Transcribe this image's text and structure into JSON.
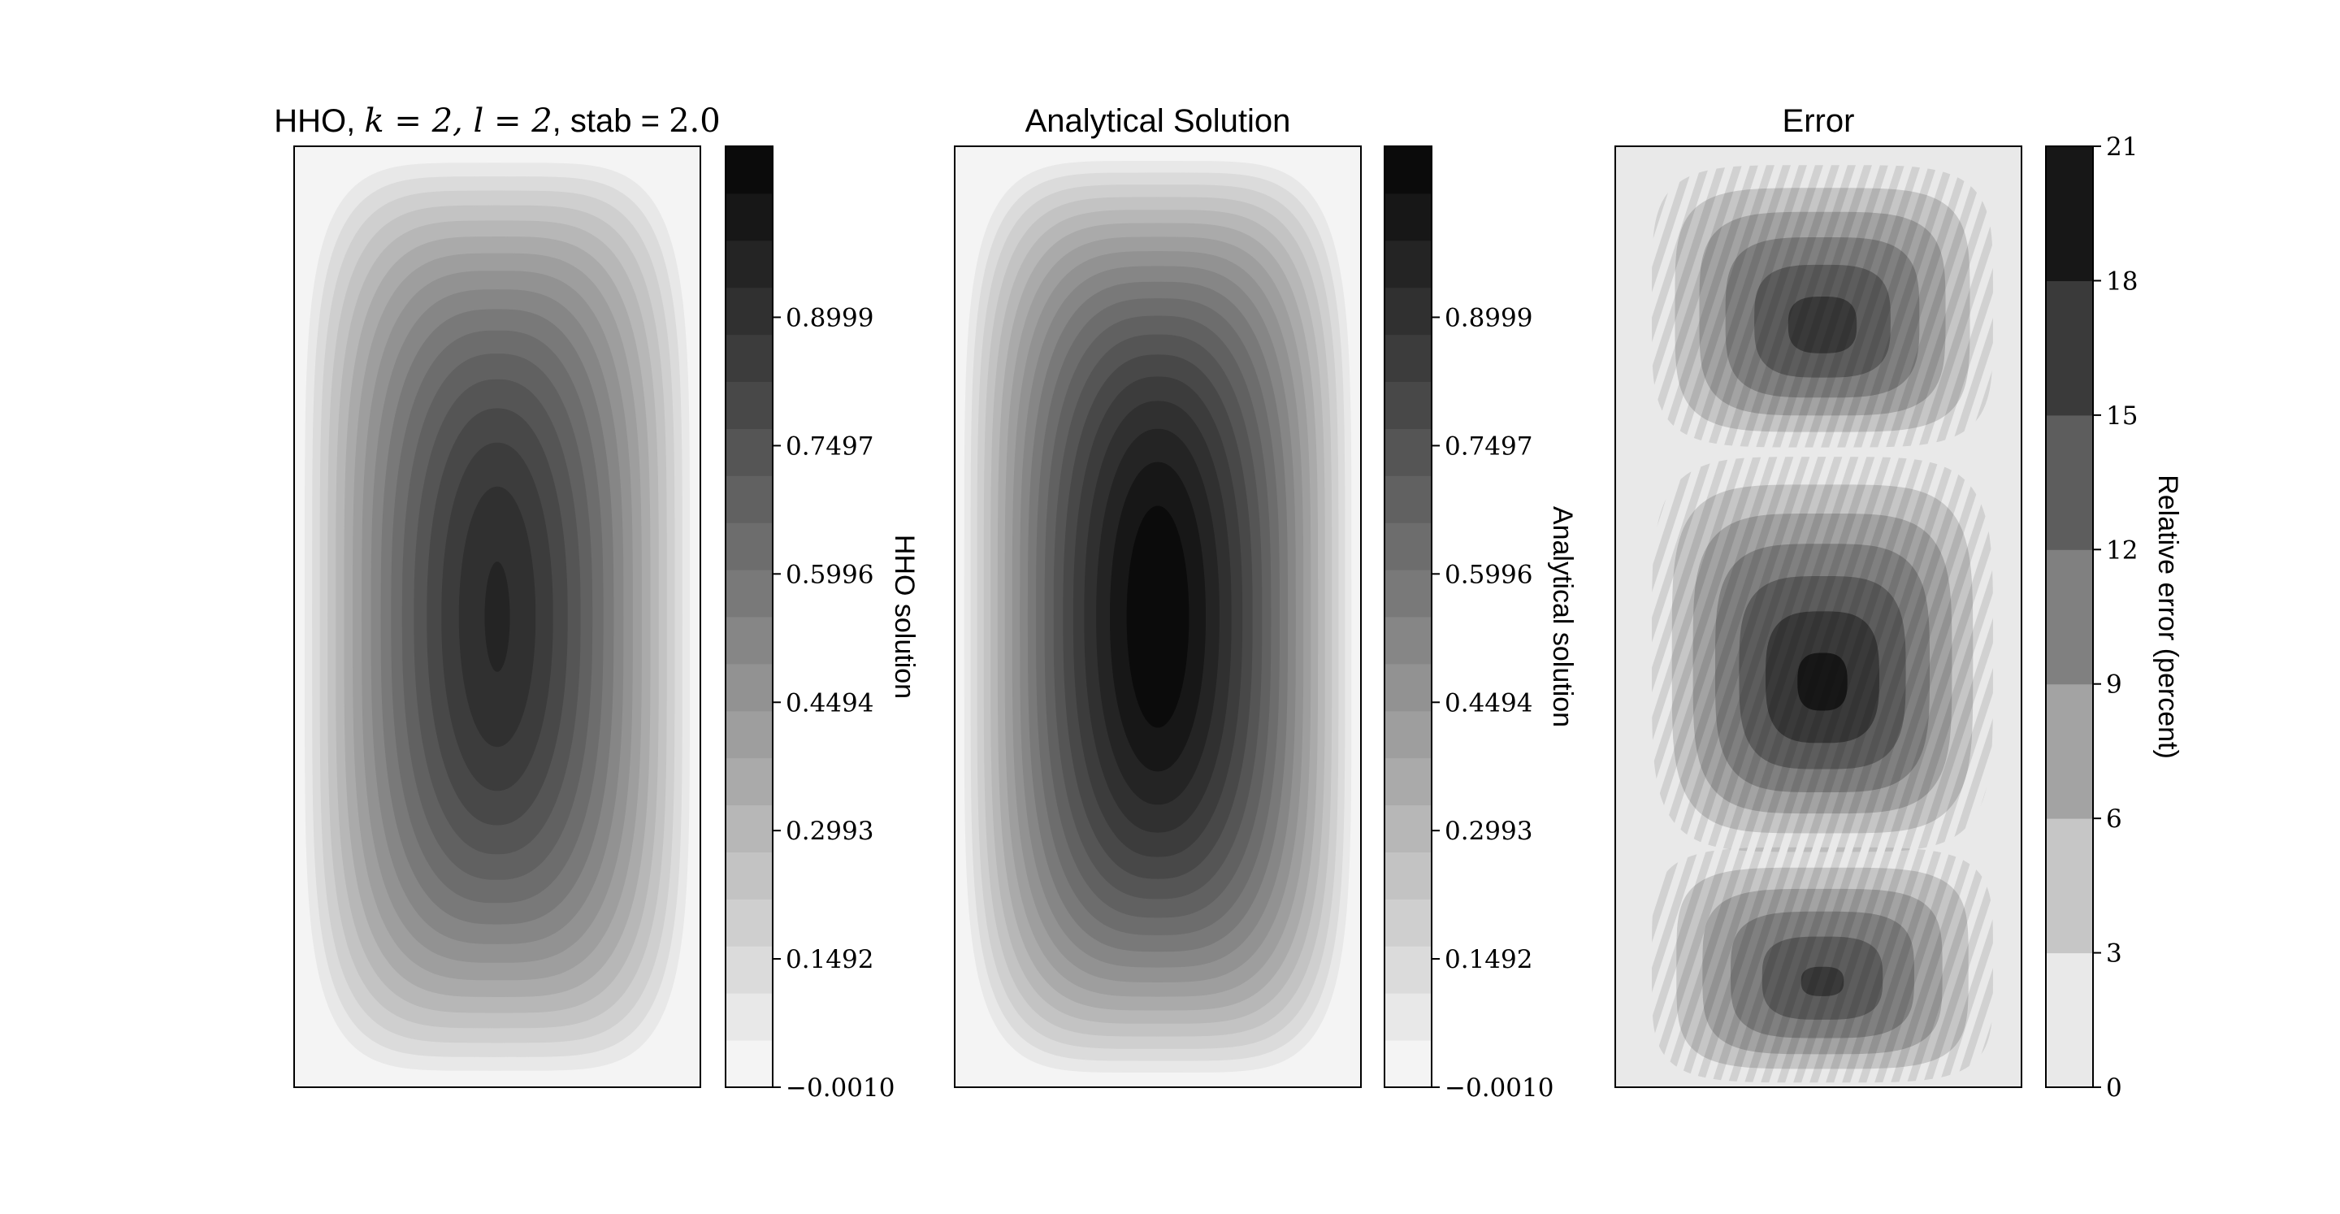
{
  "chart_data": [
    {
      "type": "heatmap",
      "title": "HHO, k = 2, l = 2, stab = 2.0",
      "title_parts": {
        "prefix": "HHO, ",
        "k": "k = 2, l = 2",
        "stab_word": ", stab = ",
        "stab": "2.0"
      },
      "colorbar": {
        "label": "HHO solution",
        "ticks": [
          "−0.0010",
          "0.1492",
          "0.2993",
          "0.4494",
          "0.5996",
          "0.7497",
          "0.8999"
        ],
        "tick_values": [
          -0.001,
          0.1492,
          0.2993,
          0.4494,
          0.5996,
          0.7497,
          0.8999
        ],
        "range": [
          -0.001,
          1.1
        ],
        "levels": 20
      },
      "field": {
        "peak": 0.86,
        "levels": 20
      },
      "colormap": "gray_r"
    },
    {
      "type": "heatmap",
      "title": "Analytical Solution",
      "colorbar": {
        "label": "Analytical solution",
        "ticks": [
          "−0.0010",
          "0.1492",
          "0.2993",
          "0.4494",
          "0.5996",
          "0.7497",
          "0.8999"
        ],
        "tick_values": [
          -0.001,
          0.1492,
          0.2993,
          0.4494,
          0.5996,
          0.7497,
          0.8999
        ],
        "range": [
          -0.001,
          1.1
        ],
        "levels": 20
      },
      "field": {
        "peak": 1.0,
        "levels": 20
      },
      "colormap": "gray_r"
    },
    {
      "type": "heatmap",
      "title": "Error",
      "colorbar": {
        "label": "Relative error (percent)",
        "ticks": [
          "0",
          "3",
          "6",
          "9",
          "12",
          "15",
          "18",
          "21"
        ],
        "tick_values": [
          0,
          3,
          6,
          9,
          12,
          15,
          18,
          21
        ],
        "range": [
          0,
          21
        ],
        "levels": 7
      },
      "field": {
        "blobs": [
          {
            "peak": 17
          },
          {
            "peak": 19.5
          },
          {
            "peak": 16
          }
        ]
      },
      "colormap": "gray_r"
    }
  ]
}
